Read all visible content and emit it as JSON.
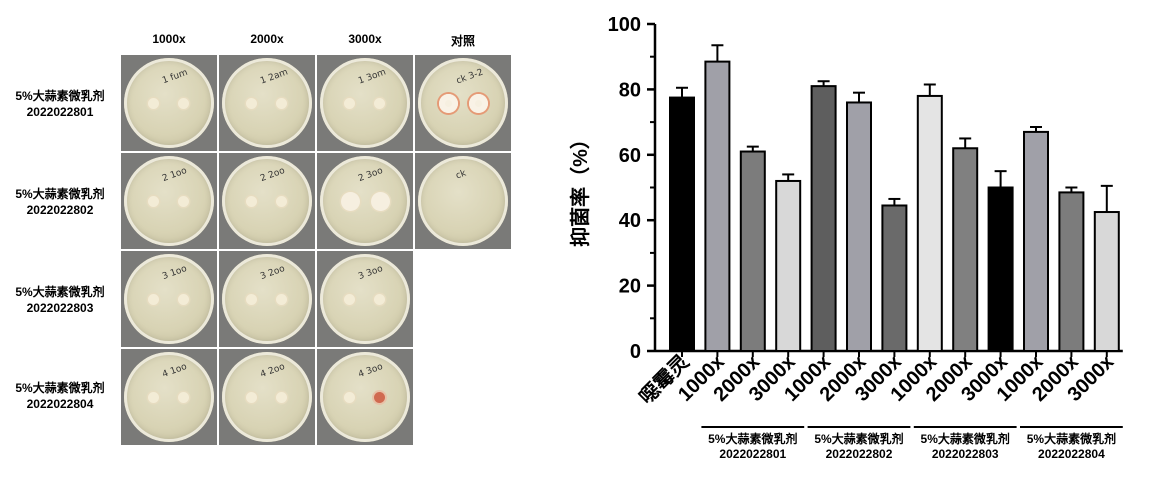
{
  "photo_panel": {
    "column_headers": [
      "1000x",
      "2000x",
      "3000x",
      "对照"
    ],
    "rows": [
      {
        "name": "5%大蒜素微乳剂",
        "batch": "2022022801",
        "plates": 4
      },
      {
        "name": "5%大蒜素微乳剂",
        "batch": "2022022802",
        "plates": 4
      },
      {
        "name": "5%大蒜素微乳剂",
        "batch": "2022022803",
        "plates": 3
      },
      {
        "name": "5%大蒜素微乳剂",
        "batch": "2022022804",
        "plates": 3
      }
    ]
  },
  "chart_data": {
    "type": "bar",
    "title": "",
    "ylabel": "抑菌率（%）",
    "ylim": [
      0,
      100
    ],
    "yticks": [
      0,
      20,
      40,
      60,
      80,
      100
    ],
    "categories": [
      "噁霉灵",
      "1000x",
      "2000x",
      "3000x",
      "1000x",
      "2000x",
      "3000x",
      "1000x",
      "2000x",
      "3000x",
      "1000x",
      "2000x",
      "3000x"
    ],
    "values": [
      77.5,
      88.5,
      61,
      52,
      81,
      76,
      44.5,
      78,
      62,
      50,
      67,
      48.5,
      42.5
    ],
    "errors": [
      3,
      5,
      1.5,
      2,
      1.5,
      3,
      2,
      3.5,
      3,
      5,
      1.5,
      1.5,
      8
    ],
    "bar_colors": [
      "#000000",
      "#a0a0a8",
      "#7c7c7c",
      "#d8d8d8",
      "#5e5e5e",
      "#a0a0a8",
      "#6a6a6a",
      "#e4e4e4",
      "#808080",
      "#000000",
      "#a0a0a8",
      "#7c7c7c",
      "#d8d8d8"
    ],
    "groups": [
      {
        "name": "5%大蒜素微乳剂",
        "batch": "2022022801",
        "start": 1,
        "end": 3
      },
      {
        "name": "5%大蒜素微乳剂",
        "batch": "2022022802",
        "start": 4,
        "end": 6
      },
      {
        "name": "5%大蒜素微乳剂",
        "batch": "2022022803",
        "start": 7,
        "end": 9
      },
      {
        "name": "5%大蒜素微乳剂",
        "batch": "2022022804",
        "start": 10,
        "end": 12
      }
    ]
  }
}
